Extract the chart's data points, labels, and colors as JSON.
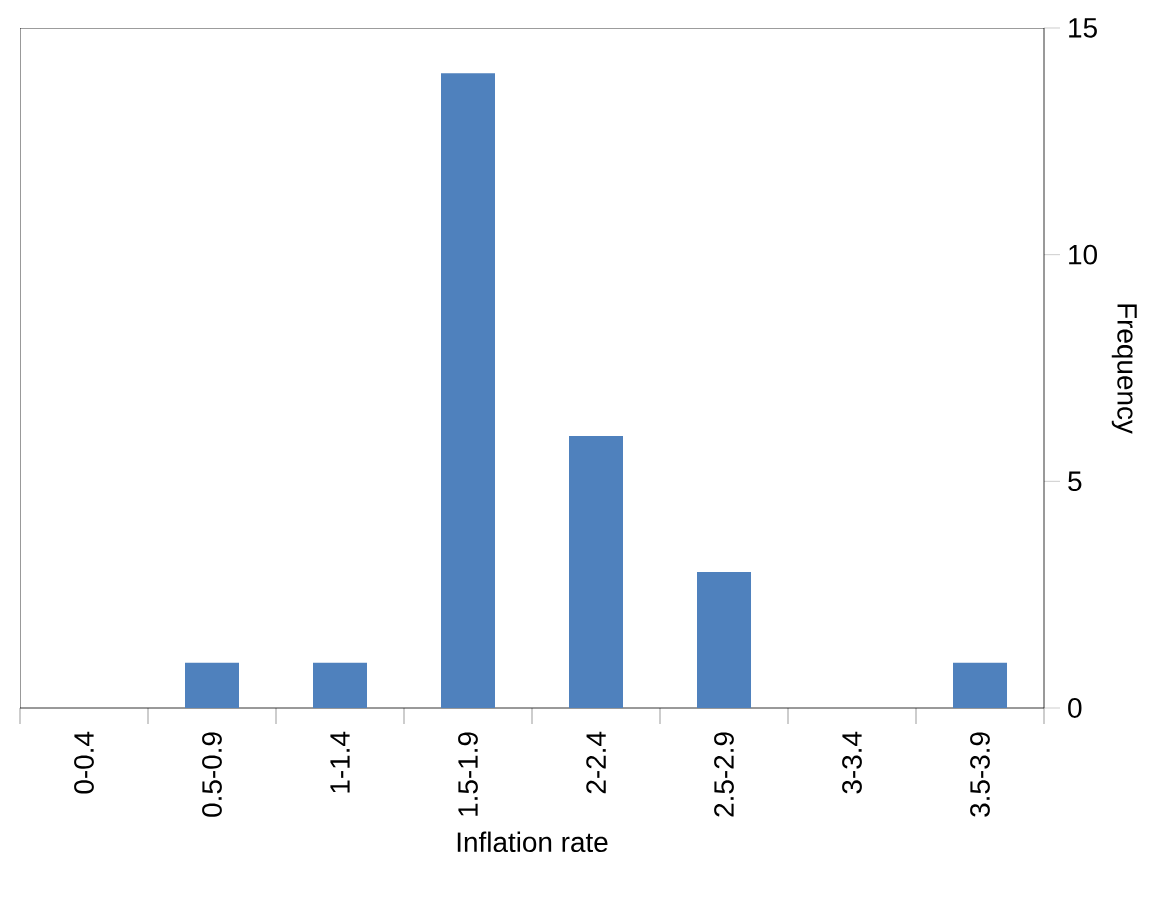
{
  "chart_data": {
    "type": "bar",
    "xlabel": "Inflation rate",
    "ylabel": "Frequency",
    "categories": [
      "0-0.4",
      "0.5-0.9",
      "1-1.4",
      "1.5-1.9",
      "2-2.4",
      "2.5-2.9",
      "3-3.4",
      "3.5-3.9"
    ],
    "values": [
      0,
      1,
      1,
      14,
      6,
      3,
      0,
      1
    ],
    "color": "#4f81bd",
    "ylim": [
      0,
      15
    ],
    "yticks": [
      0,
      5,
      10,
      15
    ],
    "grid": false
  }
}
